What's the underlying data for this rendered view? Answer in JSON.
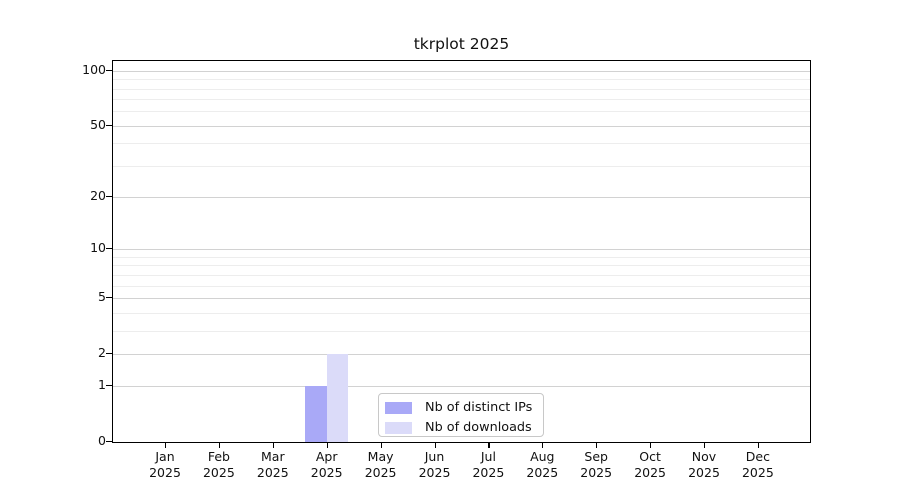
{
  "chart_data": {
    "type": "bar",
    "title": "tkrplot 2025",
    "x_categories": [
      {
        "month": "Jan",
        "year": "2025"
      },
      {
        "month": "Feb",
        "year": "2025"
      },
      {
        "month": "Mar",
        "year": "2025"
      },
      {
        "month": "Apr",
        "year": "2025"
      },
      {
        "month": "May",
        "year": "2025"
      },
      {
        "month": "Jun",
        "year": "2025"
      },
      {
        "month": "Jul",
        "year": "2025"
      },
      {
        "month": "Aug",
        "year": "2025"
      },
      {
        "month": "Sep",
        "year": "2025"
      },
      {
        "month": "Oct",
        "year": "2025"
      },
      {
        "month": "Nov",
        "year": "2025"
      },
      {
        "month": "Dec",
        "year": "2025"
      }
    ],
    "series": [
      {
        "name": "Nb of distinct IPs",
        "color": "#a9a9f7",
        "values": [
          0,
          0,
          0,
          1,
          0,
          0,
          0,
          0,
          0,
          0,
          0,
          0
        ]
      },
      {
        "name": "Nb of downloads",
        "color": "#dbdbf9",
        "values": [
          0,
          0,
          0,
          2,
          0,
          0,
          0,
          0,
          0,
          0,
          0,
          0
        ]
      }
    ],
    "y_scale": "log10(value+1)",
    "y_ticks": [
      0,
      1,
      2,
      5,
      10,
      20,
      50,
      100
    ],
    "y_minor_ticks": [
      3,
      4,
      6,
      7,
      8,
      9,
      30,
      40,
      60,
      70,
      80,
      90
    ],
    "ylim": [
      0,
      113
    ],
    "grid": "horizontal",
    "legend_position": "bottom-center-inside",
    "colors": {
      "background": "#ffffff",
      "axis": "#000000",
      "grid_major": "#d2d2d2",
      "grid_minor": "#ededed",
      "legend_border": "#c8c8c8"
    }
  }
}
